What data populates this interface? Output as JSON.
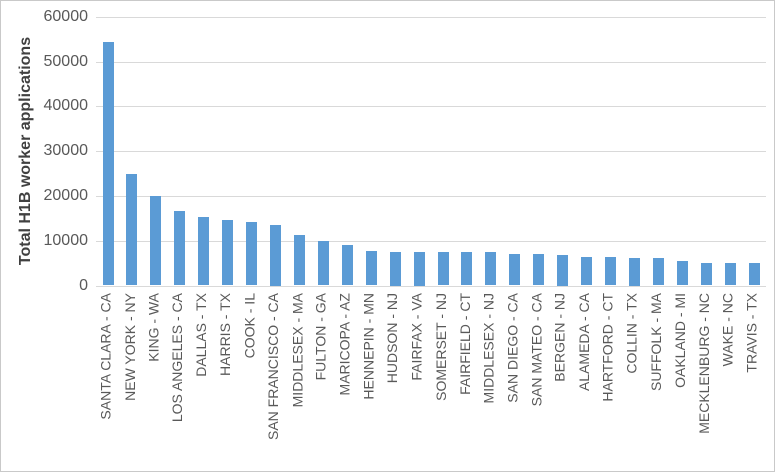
{
  "chart_data": {
    "type": "bar",
    "title": "",
    "xlabel": "",
    "ylabel": "Total H1B worker applications",
    "ylim": [
      0,
      60000
    ],
    "yticks": [
      0,
      10000,
      20000,
      30000,
      40000,
      50000,
      60000
    ],
    "grid": true,
    "legend": false,
    "bar_color": "#5b9bd5",
    "categories": [
      "SANTA CLARA - CA",
      "NEW YORK - NY",
      "KING - WA",
      "LOS ANGELES - CA",
      "DALLAS - TX",
      "HARRIS - TX",
      "COOK - IL",
      "SAN FRANCISCO - CA",
      "MIDDLESEX - MA",
      "FULTON - GA",
      "MARICOPA - AZ",
      "HENNEPIN - MN",
      "HUDSON - NJ",
      "FAIRFAX - VA",
      "SOMERSET - NJ",
      "FAIRFIELD - CT",
      "MIDDLESEX - NJ",
      "SAN DIEGO - CA",
      "SAN MATEO - CA",
      "BERGEN - NJ",
      "ALAMEDA - CA",
      "HARTFORD - CT",
      "COLLIN - TX",
      "SUFFOLK - MA",
      "OAKLAND - MI",
      "MECKLENBURG - NC",
      "WAKE - NC",
      "TRAVIS - TX"
    ],
    "values": [
      54300,
      24800,
      20000,
      16600,
      15200,
      14600,
      14200,
      13500,
      11200,
      9900,
      9000,
      7800,
      7600,
      7600,
      7500,
      7500,
      7400,
      7100,
      7000,
      6800,
      6300,
      6300,
      6250,
      6100,
      5500,
      5100,
      5100,
      5000
    ]
  },
  "colors": {
    "bar": "#5b9bd5",
    "gridline": "#d9d9d9",
    "tick_text": "#595959",
    "axis_title_text": "#404040",
    "border": "#c9c9c9",
    "background": "#ffffff"
  }
}
